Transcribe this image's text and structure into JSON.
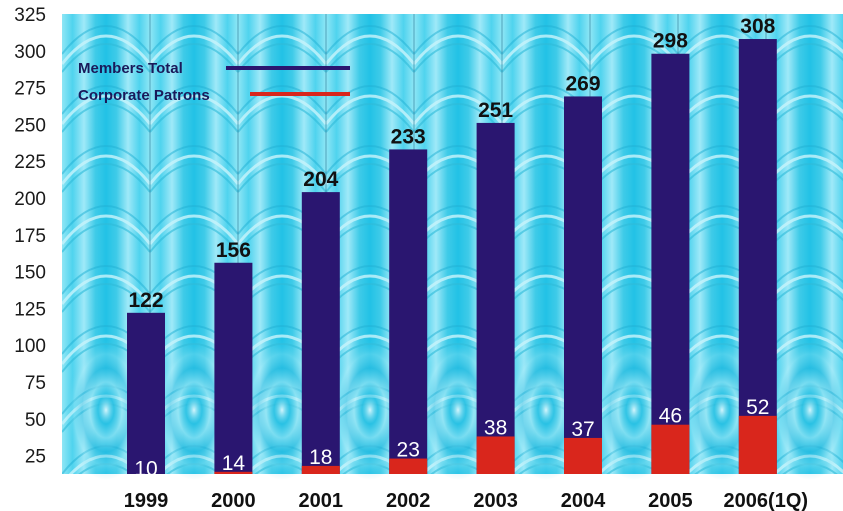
{
  "chart_data": {
    "type": "bar",
    "categories": [
      "1999",
      "2000",
      "2001",
      "2002",
      "2003",
      "2004",
      "2005",
      "2006(1Q)"
    ],
    "series": [
      {
        "name": "Members Total",
        "values": [
          122,
          156,
          204,
          233,
          251,
          269,
          298,
          308
        ],
        "color": "#2a1670"
      },
      {
        "name": "Corporate Patrons",
        "values": [
          10,
          14,
          18,
          23,
          38,
          37,
          46,
          52
        ],
        "color": "#d9261c"
      }
    ],
    "ylim": [
      12.5,
      325
    ],
    "yticks": [
      25,
      50,
      75,
      100,
      125,
      150,
      175,
      200,
      225,
      250,
      275,
      300,
      325
    ],
    "legend_position": "top-left",
    "grid": false,
    "background": "cyan concentric wave pattern"
  }
}
